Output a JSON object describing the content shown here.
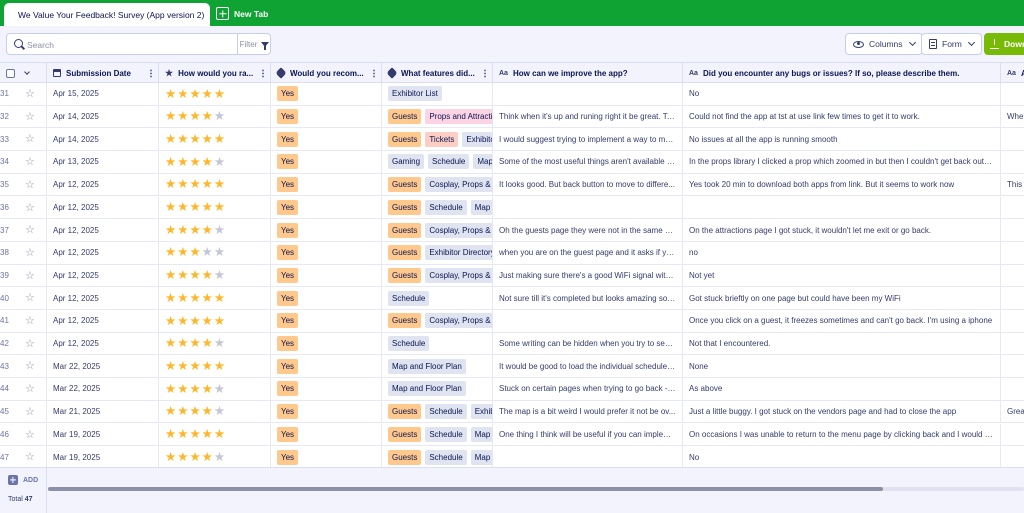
{
  "tabs": {
    "active_title": "We Value Your Feedback! Survey (App version 2)",
    "new_tab_label": "New Tab"
  },
  "toolbar": {
    "search_placeholder": "Search",
    "filter_label": "Filter",
    "columns_label": "Columns",
    "form_label": "Form",
    "download_label": "Down"
  },
  "columns": [
    {
      "label": "Submission Date",
      "icon": "calendar-icon"
    },
    {
      "label": "How would you ra...",
      "icon": "star-icon"
    },
    {
      "label": "Would you recom...",
      "icon": "tag-icon"
    },
    {
      "label": "What features did...",
      "icon": "tag-icon"
    },
    {
      "label": "How can we improve the app?",
      "icon": "text-icon"
    },
    {
      "label": "Did you encounter any bugs or issues? If so, please describe them.",
      "icon": "text-icon"
    },
    {
      "label": "A",
      "icon": "text-icon"
    }
  ],
  "rows": [
    {
      "num": "31",
      "date": "Apr 15, 2025",
      "rating": 5,
      "recommend": "Yes",
      "features": [
        {
          "t": "Exhibitor List",
          "c": "exhibit"
        }
      ],
      "improve": "",
      "bugs": "No",
      "extra": ""
    },
    {
      "num": "32",
      "date": "Apr 14, 2025",
      "rating": 4,
      "recommend": "Yes",
      "features": [
        {
          "t": "Guests",
          "c": "guests"
        },
        {
          "t": "Props and Attractions",
          "c": "props"
        }
      ],
      "improve": "Think when it's up and runing right it be great. Ta...",
      "bugs": "Could not find the app at tst at use link few times to get it to work.",
      "extra": "Whe"
    },
    {
      "num": "33",
      "date": "Apr 14, 2025",
      "rating": 5,
      "recommend": "Yes",
      "features": [
        {
          "t": "Guests",
          "c": "guests"
        },
        {
          "t": "Tickets",
          "c": "tickets"
        },
        {
          "t": "Exhibitor List",
          "c": "exhibit"
        }
      ],
      "improve": "I would suggest trying to implement a way to ma...",
      "bugs": "No issues at all the app is running smooth",
      "extra": ""
    },
    {
      "num": "34",
      "date": "Apr 13, 2025",
      "rating": 4,
      "recommend": "Yes",
      "features": [
        {
          "t": "Gaming",
          "c": "grey"
        },
        {
          "t": "Schedule",
          "c": "grey"
        },
        {
          "t": "Map and Floor Plan",
          "c": "grey"
        }
      ],
      "improve": "Some of the most useful things aren't available y...",
      "bugs": "In the props library I clicked a prop which zoomed in but then I couldn't get back out -...",
      "extra": ""
    },
    {
      "num": "35",
      "date": "Apr 12, 2025",
      "rating": 5,
      "recommend": "Yes",
      "features": [
        {
          "t": "Guests",
          "c": "guests"
        },
        {
          "t": "Cosplay, Props & Attractions",
          "c": "grey"
        }
      ],
      "improve": "It looks good. But back button to move to differe...",
      "bugs": "Yes took 20 min to download both apps from link. But it seems to work now",
      "extra": "This s"
    },
    {
      "num": "36",
      "date": "Apr 12, 2025",
      "rating": 5,
      "recommend": "Yes",
      "features": [
        {
          "t": "Guests",
          "c": "guests"
        },
        {
          "t": "Schedule",
          "c": "grey"
        },
        {
          "t": "Map and Floor Plan",
          "c": "grey"
        }
      ],
      "improve": "",
      "bugs": "",
      "extra": ""
    },
    {
      "num": "37",
      "date": "Apr 12, 2025",
      "rating": 4,
      "recommend": "Yes",
      "features": [
        {
          "t": "Guests",
          "c": "guests"
        },
        {
          "t": "Cosplay, Props & Attractions",
          "c": "grey"
        }
      ],
      "improve": "Oh the guests page they were not in the same or...",
      "bugs": "On the attractions page I got stuck, it wouldn't let me exit or go back.",
      "extra": ""
    },
    {
      "num": "38",
      "date": "Apr 12, 2025",
      "rating": 3,
      "recommend": "Yes",
      "features": [
        {
          "t": "Guests",
          "c": "guests"
        },
        {
          "t": "Exhibitor Directory",
          "c": "grey"
        }
      ],
      "improve": "when you are on the guest page and it asks if yo...",
      "bugs": "no",
      "extra": ""
    },
    {
      "num": "39",
      "date": "Apr 12, 2025",
      "rating": 4,
      "recommend": "Yes",
      "features": [
        {
          "t": "Guests",
          "c": "guests"
        },
        {
          "t": "Cosplay, Props & Attractions",
          "c": "grey"
        }
      ],
      "improve": "Just making sure there's a good WiFi signal withi...",
      "bugs": "Not yet",
      "extra": ""
    },
    {
      "num": "40",
      "date": "Apr 12, 2025",
      "rating": 5,
      "recommend": "Yes",
      "features": [
        {
          "t": "Schedule",
          "c": "grey"
        }
      ],
      "improve": "Not sure till it's completed but looks amazing so ...",
      "bugs": "Got stuck brieftly on one page but could have been my WiFi",
      "extra": ""
    },
    {
      "num": "41",
      "date": "Apr 12, 2025",
      "rating": 5,
      "recommend": "Yes",
      "features": [
        {
          "t": "Guests",
          "c": "guests"
        },
        {
          "t": "Cosplay, Props & Attractions",
          "c": "grey"
        }
      ],
      "improve": "",
      "bugs": "Once you click on a guest, it freezes sometimes and can't go back. I'm using a iphone",
      "extra": ""
    },
    {
      "num": "42",
      "date": "Apr 12, 2025",
      "rating": 4,
      "recommend": "Yes",
      "features": [
        {
          "t": "Schedule",
          "c": "grey"
        }
      ],
      "improve": "Some writing can be hidden when you try to see ...",
      "bugs": "Not that I encountered.",
      "extra": ""
    },
    {
      "num": "43",
      "date": "Mar 22, 2025",
      "rating": 5,
      "recommend": "Yes",
      "features": [
        {
          "t": "Map and Floor Plan",
          "c": "grey"
        }
      ],
      "improve": "It would be good to load the individual schedules...",
      "bugs": "None",
      "extra": ""
    },
    {
      "num": "44",
      "date": "Mar 22, 2025",
      "rating": 4,
      "recommend": "Yes",
      "features": [
        {
          "t": "Map and Floor Plan",
          "c": "grey"
        }
      ],
      "improve": "Stuck on certain pages when trying to go back - ...",
      "bugs": "As above",
      "extra": ""
    },
    {
      "num": "45",
      "date": "Mar 21, 2025",
      "rating": 4,
      "recommend": "Yes",
      "features": [
        {
          "t": "Guests",
          "c": "guests"
        },
        {
          "t": "Schedule",
          "c": "grey"
        },
        {
          "t": "Exhibitor List",
          "c": "grey"
        }
      ],
      "improve": "The map is a bit weird I would prefer it not be ov...",
      "bugs": "Just a little buggy. I got stuck on the vendors page and had to close the app",
      "extra": "Grea"
    },
    {
      "num": "46",
      "date": "Mar 19, 2025",
      "rating": 5,
      "recommend": "Yes",
      "features": [
        {
          "t": "Guests",
          "c": "guests"
        },
        {
          "t": "Schedule",
          "c": "grey"
        },
        {
          "t": "Map and Floor Plan",
          "c": "grey"
        }
      ],
      "improve": "One thing I think will be useful if you can implem...",
      "bugs": "On occasions I was unable to return to the menu page by clicking back and I would ha...",
      "extra": ""
    },
    {
      "num": "47",
      "date": "Mar 19, 2025",
      "rating": 4,
      "recommend": "Yes",
      "features": [
        {
          "t": "Guests",
          "c": "guests"
        },
        {
          "t": "Schedule",
          "c": "grey"
        },
        {
          "t": "Map and Floor Plan",
          "c": "grey"
        }
      ],
      "improve": "",
      "bugs": "No",
      "extra": ""
    }
  ],
  "footer": {
    "add_label": "ADD",
    "total_label": "Total",
    "total_value": "47"
  },
  "colors": {
    "tab_bar": "#0fa333",
    "star_on": "#ffb629",
    "yes_badge": "#ffc88c",
    "download_button": "#78bb07"
  }
}
